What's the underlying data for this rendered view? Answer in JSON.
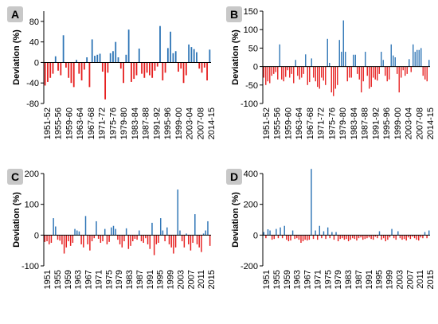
{
  "colors": {
    "positive": "#2e75b6",
    "negative": "#e62020",
    "axis": "#000000"
  },
  "chart_data": [
    {
      "panel": "A",
      "type": "bar",
      "ylabel": "Deviation (%)",
      "ylim": [
        -80,
        100
      ],
      "yticks": [
        -80,
        -40,
        0,
        40,
        80
      ],
      "x_tick_labels": [
        "1951-52",
        "1955-56",
        "1959-60",
        "1963-64",
        "1967-68",
        "1971-72",
        "1975-76",
        "1979-80",
        "1983-84",
        "1987-88",
        "1991-92",
        "1995-96",
        "1999-00",
        "2003-04",
        "2007-08",
        "2014-15"
      ],
      "values": [
        -45,
        -38,
        -30,
        -22,
        12,
        -16,
        -25,
        53,
        -10,
        -30,
        -40,
        -48,
        5,
        -22,
        -35,
        -14,
        10,
        -48,
        45,
        13,
        15,
        17,
        -18,
        -72,
        -20,
        18,
        22,
        40,
        10,
        -12,
        -40,
        15,
        64,
        -38,
        -32,
        -25,
        27,
        -22,
        -30,
        -20,
        -25,
        -30,
        -16,
        -8,
        71,
        -35,
        -20,
        28,
        60,
        18,
        22,
        -18,
        -12,
        -40,
        -25,
        35,
        30,
        26,
        20,
        -12,
        -20,
        -10,
        -35,
        25
      ]
    },
    {
      "panel": "B",
      "type": "bar",
      "ylabel": "Deviation (%)",
      "ylim": [
        -100,
        150
      ],
      "yticks": [
        -100,
        -50,
        0,
        50,
        100,
        150
      ],
      "x_tick_labels": [
        "1951-52",
        "1955-56",
        "1959-60",
        "1963-64",
        "1967-68",
        "1971-72",
        "1975-76",
        "1979-80",
        "1983-84",
        "1987-88",
        "1991-92",
        "1995-96",
        "1999-00",
        "2003-04",
        "2007-08",
        "2014-15"
      ],
      "values": [
        -30,
        -50,
        -40,
        -45,
        -25,
        -20,
        -15,
        -35,
        60,
        -35,
        -40,
        -28,
        -10,
        -30,
        -20,
        -45,
        18,
        -25,
        -35,
        -30,
        -20,
        33,
        -50,
        -42,
        22,
        -30,
        -40,
        -55,
        -60,
        -30,
        -38,
        -50,
        75,
        10,
        -70,
        -80,
        -60,
        -50,
        72,
        40,
        125,
        40,
        -40,
        -30,
        -30,
        32,
        32,
        -20,
        -35,
        -70,
        -40,
        40,
        -25,
        -60,
        -55,
        -30,
        -35,
        -38,
        -20,
        40,
        18,
        -25,
        -40,
        -35,
        60,
        30,
        25,
        -20,
        -70,
        -30,
        -10,
        -25,
        -20,
        20,
        -15,
        60,
        40,
        45,
        45,
        50,
        -25,
        -35,
        -40,
        18
      ]
    },
    {
      "panel": "C",
      "type": "bar",
      "ylabel": "Deviation (%)",
      "ylim": [
        -100,
        200
      ],
      "yticks": [
        -100,
        0,
        100,
        200
      ],
      "x_tick_labels": [
        "1951",
        "1955",
        "1959",
        "1963",
        "1967",
        "1971",
        "1975",
        "1979",
        "1983",
        "1987",
        "1991",
        "1995",
        "1999",
        "2003",
        "2007",
        "2011",
        "2015"
      ],
      "values": [
        -22,
        -20,
        -30,
        -25,
        55,
        28,
        -15,
        -18,
        -30,
        -60,
        -40,
        -20,
        -35,
        -25,
        20,
        15,
        12,
        -30,
        -40,
        62,
        -30,
        -50,
        -20,
        -10,
        45,
        -12,
        -25,
        -20,
        20,
        -30,
        -22,
        25,
        30,
        20,
        -15,
        -30,
        -40,
        -20,
        22,
        -45,
        -35,
        -20,
        -12,
        -15,
        15,
        -20,
        -25,
        -10,
        -30,
        -45,
        40,
        -65,
        -30,
        -25,
        55,
        15,
        -20,
        25,
        -30,
        -40,
        -60,
        -40,
        148,
        15,
        -20,
        -40,
        5,
        -30,
        -50,
        -25,
        68,
        -30,
        -40,
        -55,
        5,
        15,
        45,
        -35
      ]
    },
    {
      "panel": "D",
      "type": "bar",
      "ylabel": "Deviation (%)",
      "ylim": [
        -200,
        400
      ],
      "yticks": [
        -200,
        0,
        200,
        400
      ],
      "x_tick_labels": [
        "1951",
        "1955",
        "1959",
        "1963",
        "1967",
        "1971",
        "1975",
        "1979",
        "1983",
        "1987",
        "1991",
        "1995",
        "1999",
        "2003",
        "2007",
        "2011",
        "2015"
      ],
      "values": [
        20,
        -20,
        38,
        30,
        -30,
        -25,
        40,
        -20,
        50,
        -20,
        60,
        -30,
        -40,
        -35,
        30,
        -25,
        -20,
        -30,
        -50,
        -40,
        -30,
        -35,
        -30,
        430,
        -25,
        30,
        -30,
        60,
        -20,
        25,
        -25,
        50,
        -20,
        20,
        -30,
        20,
        -40,
        -25,
        -20,
        -30,
        -25,
        -40,
        -30,
        -20,
        -25,
        -35,
        -20,
        -15,
        -30,
        -25,
        -20,
        -15,
        -25,
        -30,
        -10,
        -20,
        25,
        -30,
        -20,
        -40,
        -30,
        -15,
        40,
        -20,
        -30,
        25,
        -20,
        -30,
        -25,
        -35,
        -15,
        -25,
        -10,
        -20,
        -30,
        -35,
        -15,
        -20,
        20,
        -20,
        30
      ]
    }
  ]
}
